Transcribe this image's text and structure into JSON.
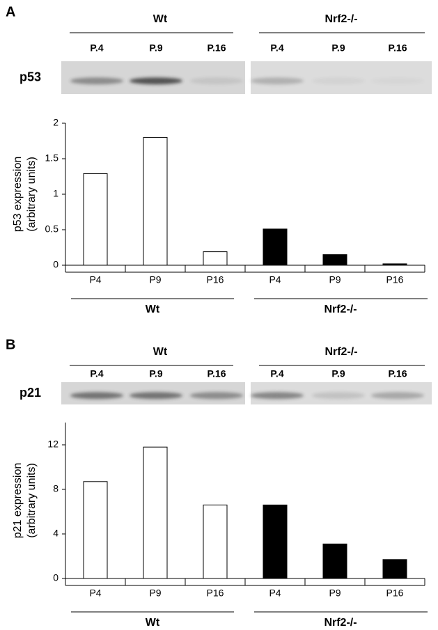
{
  "chart_data": [
    {
      "type": "bar",
      "panel_label": "A",
      "blot_label": "p53",
      "blot_groups": [
        "Wt",
        "Nrf2-/-"
      ],
      "blot_lanes": [
        "P.4",
        "P.9",
        "P.16",
        "P.4",
        "P.9",
        "P.16"
      ],
      "ylabel": [
        "p53 expression",
        "(arbitrary units)"
      ],
      "categories": [
        "P4",
        "P9",
        "P16",
        "P4",
        "P9",
        "P16"
      ],
      "values": [
        1.29,
        1.8,
        0.19,
        0.51,
        0.15,
        0.02
      ],
      "colors": [
        "#ffffff",
        "#ffffff",
        "#ffffff",
        "#000000",
        "#000000",
        "#000000"
      ],
      "groups": [
        "Wt",
        "Nrf2-/-"
      ],
      "ylim": [
        0,
        2
      ],
      "yticks": [
        0,
        0.5,
        1,
        1.5,
        2
      ]
    },
    {
      "type": "bar",
      "panel_label": "B",
      "blot_label": "p21",
      "blot_groups": [
        "Wt",
        "Nrf2-/-"
      ],
      "blot_lanes": [
        "P.4",
        "P.9",
        "P.16",
        "P.4",
        "P.9",
        "P.16"
      ],
      "ylabel": [
        "p21 expression",
        "(arbitrary units)"
      ],
      "categories": [
        "P4",
        "P9",
        "P16",
        "P4",
        "P9",
        "P16"
      ],
      "values": [
        8.7,
        11.8,
        6.6,
        6.6,
        3.1,
        1.7
      ],
      "colors": [
        "#ffffff",
        "#ffffff",
        "#ffffff",
        "#000000",
        "#000000",
        "#000000"
      ],
      "groups": [
        "Wt",
        "Nrf2-/-"
      ],
      "ylim": [
        0,
        14
      ],
      "yticks": [
        0,
        4,
        8,
        12
      ]
    }
  ]
}
